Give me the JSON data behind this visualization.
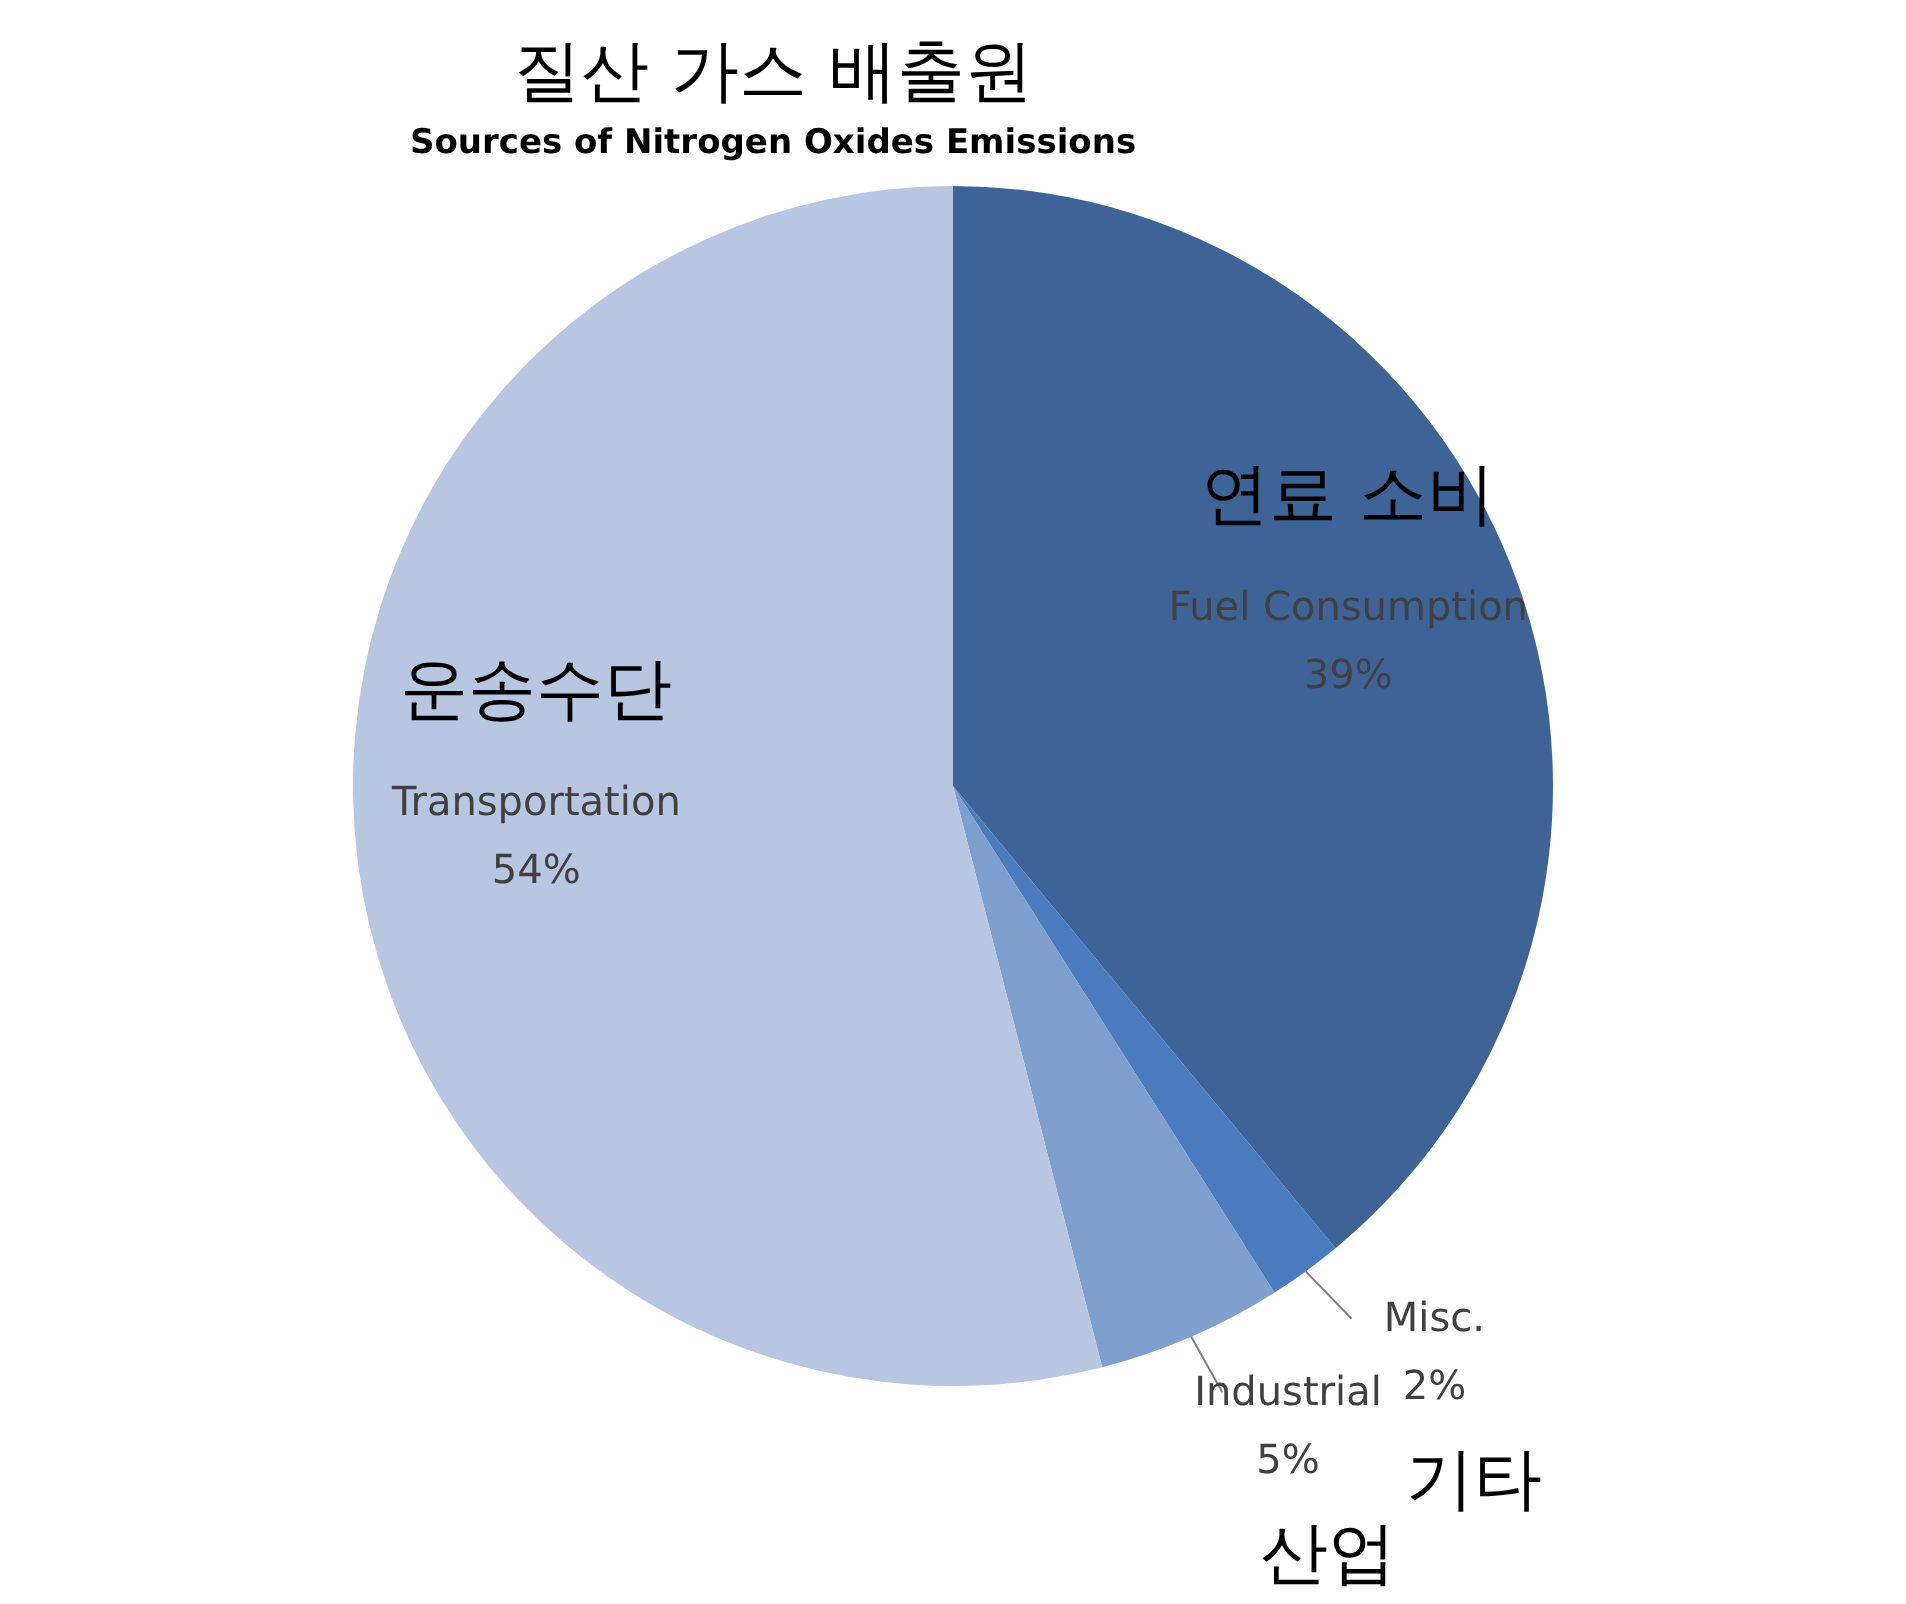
{
  "chart_data": {
    "type": "pie",
    "title": "질산 가스 배출원",
    "subtitle": "Sources of Nitrogen Oxides Emissions",
    "categories": [
      "Fuel Consumption",
      "Misc.",
      "Industrial",
      "Transportation"
    ],
    "values": [
      39,
      2,
      5,
      54
    ],
    "colors": [
      "#3e6497",
      "#4a7bbf",
      "#7f9fcf",
      "#b8c6e2"
    ],
    "value_labels": [
      "39%",
      "2%",
      "5%",
      "54%"
    ],
    "legend": false,
    "annotations": [
      {
        "text": "연료 소비",
        "x": "Fuel Consumption"
      },
      {
        "text": "기타",
        "x": "Misc."
      },
      {
        "text": "산업",
        "x": "Industrial"
      },
      {
        "text": "운송수단",
        "x": "Transportation"
      }
    ]
  }
}
